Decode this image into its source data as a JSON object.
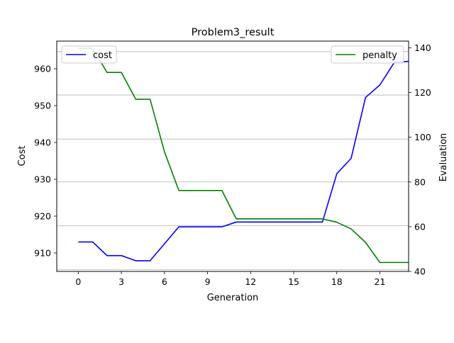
{
  "chart_data": {
    "type": "line",
    "title": "Problem3_result",
    "xlabel": "Generation",
    "ylabel_left": "Cost",
    "ylabel_right": "Evaluation",
    "x": [
      0,
      1,
      2,
      3,
      4,
      5,
      6,
      7,
      8,
      9,
      10,
      11,
      12,
      13,
      14,
      15,
      16,
      17,
      18,
      19,
      20,
      21,
      22,
      23
    ],
    "xlim": [
      -1.5,
      23
    ],
    "xticks": [
      0,
      3,
      6,
      9,
      12,
      15,
      18,
      21
    ],
    "ylim_left": [
      905,
      967.5
    ],
    "yticks_left": [
      910,
      920,
      930,
      940,
      950,
      960
    ],
    "ylim_right": [
      40,
      143
    ],
    "yticks_right": [
      40,
      60,
      80,
      100,
      120,
      140
    ],
    "grid_right_y": [
      40.8,
      60.4,
      80.0,
      99.2,
      118.9,
      138.3
    ],
    "series": [
      {
        "name": "cost",
        "axis": "left",
        "color": "#0000ff",
        "values": [
          913.0,
          913.0,
          909.3,
          909.3,
          907.9,
          907.9,
          912.5,
          917.1,
          917.1,
          917.1,
          917.1,
          918.4,
          918.4,
          918.4,
          918.4,
          918.4,
          918.4,
          918.4,
          931.5,
          935.7,
          952.2,
          955.6,
          961.7,
          962.0
        ]
      },
      {
        "name": "penalty",
        "axis": "right",
        "color": "#008000",
        "values": [
          139.8,
          139.8,
          129.0,
          129.0,
          117.0,
          117.0,
          93.5,
          76.2,
          76.2,
          76.2,
          76.2,
          63.5,
          63.5,
          63.5,
          63.5,
          63.5,
          63.5,
          63.5,
          62.0,
          59.0,
          53.0,
          44.0,
          44.0,
          44.0
        ]
      }
    ],
    "legend_left": {
      "placement": "upper-left",
      "label": "cost"
    },
    "legend_right": {
      "placement": "upper-right",
      "label": "penalty"
    }
  }
}
